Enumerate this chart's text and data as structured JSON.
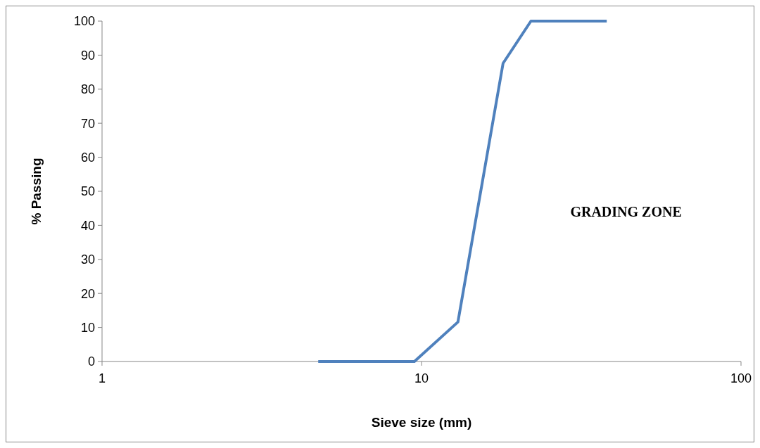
{
  "chart_data": {
    "type": "line",
    "xlabel": "Sieve size (mm)",
    "ylabel": "% Passing",
    "log": "x",
    "xlim": [
      1,
      100
    ],
    "xticks": [
      1,
      10,
      100
    ],
    "ylim": [
      0,
      100
    ],
    "yticks": [
      0,
      10,
      20,
      30,
      40,
      50,
      60,
      70,
      80,
      90,
      100
    ],
    "grid": false,
    "marker": "none",
    "line_style": "solid",
    "x": [
      4.75,
      9.5,
      13,
      18,
      22,
      38
    ],
    "series": [
      {
        "color": "#4f81bd",
        "values": [
          0,
          0,
          11.6,
          87.6,
          100,
          100
        ]
      }
    ],
    "annotations": [
      "GRADING ZONE"
    ]
  }
}
